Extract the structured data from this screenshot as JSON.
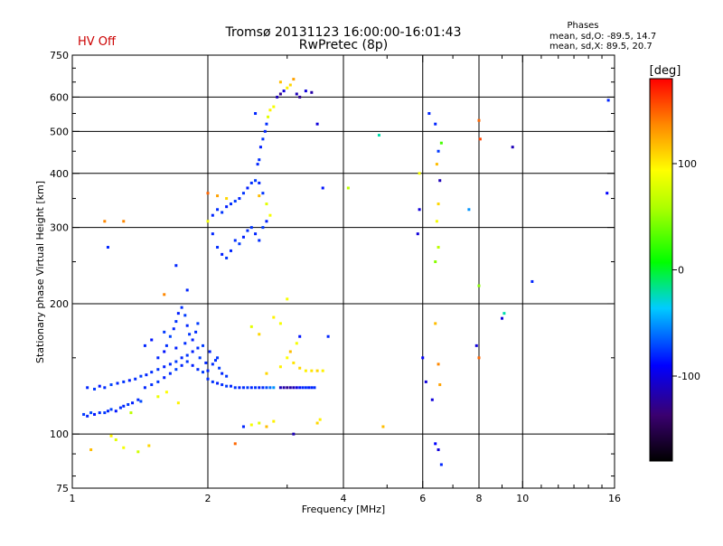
{
  "status": {
    "hv_label": "HV Off",
    "hv_color": "#cc0000"
  },
  "phase_info": {
    "heading": "Phases",
    "line_o": "mean, sd,O: -89.5, 14.7",
    "line_x": "mean, sd,X: 89.5, 20.7"
  },
  "colorbar": {
    "label": "[deg]",
    "ticks": [
      "100",
      "0",
      "-100"
    ],
    "tick_values": [
      100,
      0,
      -100
    ],
    "range": [
      -180,
      180
    ]
  },
  "chart_data": {
    "type": "scatter",
    "title": "Tromsø 20131123 16:00:00-16:01:43",
    "subtitle": "RwPretec (8p)",
    "xlabel": "Frequency [MHz]",
    "ylabel": "Stationary phase Virtual Height [km]",
    "xscale": "log",
    "yscale": "log",
    "xlim": [
      1,
      16
    ],
    "ylim": [
      75,
      750
    ],
    "x_ticks": [
      1,
      2,
      4,
      6,
      8,
      10,
      16
    ],
    "x_tick_labels": [
      "1",
      "2",
      "4",
      "6",
      "8",
      "10",
      "16"
    ],
    "y_ticks": [
      75,
      100,
      200,
      300,
      400,
      500,
      600,
      750
    ],
    "y_tick_labels": [
      "75",
      "100",
      "200",
      "300",
      "400",
      "500",
      "600",
      "750"
    ],
    "grid": true,
    "x_major_gridlines": [
      2,
      4,
      6,
      8,
      10,
      16
    ],
    "y_major_gridlines": [
      100,
      200,
      300,
      400,
      500,
      600
    ],
    "color_scale": "phase [deg]",
    "points": [
      [
        1.06,
        111,
        -85
      ],
      [
        1.08,
        110,
        -90
      ],
      [
        1.1,
        112,
        -80
      ],
      [
        1.12,
        111,
        -95
      ],
      [
        1.15,
        112,
        -88
      ],
      [
        1.18,
        112,
        -85
      ],
      [
        1.2,
        113,
        -90
      ],
      [
        1.22,
        114,
        -82
      ],
      [
        1.25,
        113,
        -95
      ],
      [
        1.28,
        115,
        -88
      ],
      [
        1.3,
        116,
        -90
      ],
      [
        1.33,
        117,
        -85
      ],
      [
        1.36,
        118,
        -92
      ],
      [
        1.4,
        120,
        -88
      ],
      [
        1.42,
        119,
        -80
      ],
      [
        1.08,
        128,
        -90
      ],
      [
        1.12,
        127,
        -85
      ],
      [
        1.15,
        129,
        -95
      ],
      [
        1.18,
        128,
        -88
      ],
      [
        1.22,
        130,
        -82
      ],
      [
        1.26,
        131,
        -90
      ],
      [
        1.3,
        132,
        -86
      ],
      [
        1.34,
        133,
        -92
      ],
      [
        1.38,
        134,
        -88
      ],
      [
        1.42,
        136,
        -84
      ],
      [
        1.46,
        137,
        -90
      ],
      [
        1.5,
        139,
        -88
      ],
      [
        1.55,
        141,
        -86
      ],
      [
        1.6,
        143,
        -92
      ],
      [
        1.65,
        145,
        -88
      ],
      [
        1.7,
        147,
        -84
      ],
      [
        1.75,
        150,
        -90
      ],
      [
        1.8,
        152,
        -86
      ],
      [
        1.85,
        155,
        -92
      ],
      [
        1.9,
        158,
        -88
      ],
      [
        1.95,
        160,
        -84
      ],
      [
        1.45,
        128,
        -90
      ],
      [
        1.5,
        130,
        -88
      ],
      [
        1.55,
        132,
        -85
      ],
      [
        1.6,
        135,
        -92
      ],
      [
        1.65,
        138,
        -88
      ],
      [
        1.7,
        141,
        -82
      ],
      [
        1.75,
        144,
        -90
      ],
      [
        1.8,
        147,
        -86
      ],
      [
        1.85,
        144,
        -92
      ],
      [
        1.9,
        141,
        -88
      ],
      [
        1.95,
        139,
        -84
      ],
      [
        1.55,
        150,
        -90
      ],
      [
        1.6,
        155,
        -95
      ],
      [
        1.62,
        160,
        -88
      ],
      [
        1.65,
        168,
        -82
      ],
      [
        1.68,
        175,
        -90
      ],
      [
        1.7,
        182,
        -86
      ],
      [
        1.72,
        190,
        -92
      ],
      [
        1.75,
        196,
        -88
      ],
      [
        1.78,
        188,
        -84
      ],
      [
        1.8,
        178,
        -90
      ],
      [
        1.82,
        170,
        -86
      ],
      [
        1.85,
        165,
        -92
      ],
      [
        1.88,
        172,
        -88
      ],
      [
        1.9,
        180,
        -84
      ],
      [
        1.5,
        165,
        -95
      ],
      [
        1.45,
        160,
        -90
      ],
      [
        1.6,
        172,
        -85
      ],
      [
        1.7,
        158,
        -92
      ],
      [
        1.78,
        162,
        -88
      ],
      [
        1.92,
        150,
        -84
      ],
      [
        1.98,
        146,
        -90
      ],
      [
        2.0,
        134,
        -88
      ],
      [
        2.05,
        132,
        -86
      ],
      [
        2.1,
        131,
        -92
      ],
      [
        2.15,
        130,
        -88
      ],
      [
        2.2,
        129,
        -84
      ],
      [
        2.25,
        129,
        -90
      ],
      [
        2.3,
        128,
        -86
      ],
      [
        2.35,
        128,
        -92
      ],
      [
        2.4,
        128,
        -88
      ],
      [
        2.45,
        128,
        -84
      ],
      [
        2.5,
        128,
        -90
      ],
      [
        2.55,
        128,
        -86
      ],
      [
        2.6,
        128,
        -92
      ],
      [
        2.65,
        128,
        -88
      ],
      [
        2.7,
        128,
        -80
      ],
      [
        2.75,
        128,
        -70
      ],
      [
        2.8,
        128,
        -60
      ],
      [
        2.9,
        128,
        -120
      ],
      [
        2.95,
        128,
        -125
      ],
      [
        3.0,
        128,
        -130
      ],
      [
        3.05,
        128,
        -125
      ],
      [
        3.1,
        128,
        -120
      ],
      [
        3.15,
        128,
        -110
      ],
      [
        3.2,
        128,
        -95
      ],
      [
        3.25,
        128,
        -90
      ],
      [
        3.3,
        128,
        -88
      ],
      [
        3.35,
        128,
        -92
      ],
      [
        3.4,
        128,
        -90
      ],
      [
        3.45,
        128,
        -88
      ],
      [
        2.0,
        140,
        -90
      ],
      [
        2.05,
        145,
        -88
      ],
      [
        2.1,
        150,
        -86
      ],
      [
        2.02,
        155,
        -92
      ],
      [
        2.08,
        148,
        -88
      ],
      [
        2.12,
        142,
        -84
      ],
      [
        2.15,
        138,
        -90
      ],
      [
        2.2,
        136,
        -86
      ],
      [
        1.35,
        112,
        60
      ],
      [
        1.25,
        97,
        80
      ],
      [
        1.3,
        93,
        90
      ],
      [
        1.22,
        99,
        100
      ],
      [
        1.48,
        94,
        110
      ],
      [
        1.1,
        92,
        120
      ],
      [
        1.4,
        91,
        70
      ],
      [
        1.55,
        122,
        85
      ],
      [
        1.62,
        125,
        95
      ],
      [
        1.72,
        118,
        100
      ],
      [
        2.4,
        104,
        -90
      ],
      [
        2.5,
        105,
        90
      ],
      [
        2.6,
        106,
        80
      ],
      [
        2.7,
        104,
        120
      ],
      [
        2.3,
        95,
        150
      ],
      [
        2.8,
        107,
        100
      ],
      [
        3.1,
        100,
        -120
      ],
      [
        3.5,
        106,
        110
      ],
      [
        3.55,
        108,
        100
      ],
      [
        2.7,
        138,
        110
      ],
      [
        2.9,
        143,
        100
      ],
      [
        3.0,
        150,
        95
      ],
      [
        3.1,
        146,
        105
      ],
      [
        3.2,
        142,
        110
      ],
      [
        3.3,
        140,
        100
      ],
      [
        3.4,
        140,
        105
      ],
      [
        3.5,
        140,
        110
      ],
      [
        3.6,
        140,
        100
      ],
      [
        3.05,
        155,
        120
      ],
      [
        3.15,
        162,
        90
      ],
      [
        2.8,
        186,
        100
      ],
      [
        2.9,
        180,
        90
      ],
      [
        2.5,
        177,
        80
      ],
      [
        2.6,
        170,
        110
      ],
      [
        3.7,
        168,
        -90
      ],
      [
        3.2,
        168,
        -95
      ],
      [
        2.0,
        310,
        90
      ],
      [
        2.05,
        290,
        -90
      ],
      [
        2.1,
        270,
        -88
      ],
      [
        2.15,
        260,
        -92
      ],
      [
        2.2,
        255,
        -86
      ],
      [
        2.25,
        265,
        -90
      ],
      [
        2.3,
        280,
        -88
      ],
      [
        2.35,
        275,
        -84
      ],
      [
        2.4,
        285,
        -92
      ],
      [
        2.45,
        295,
        -88
      ],
      [
        2.5,
        300,
        -86
      ],
      [
        2.55,
        290,
        -90
      ],
      [
        2.6,
        280,
        -88
      ],
      [
        2.65,
        300,
        -84
      ],
      [
        2.7,
        310,
        -92
      ],
      [
        2.05,
        320,
        -90
      ],
      [
        2.1,
        330,
        -88
      ],
      [
        2.15,
        325,
        -86
      ],
      [
        2.2,
        335,
        -92
      ],
      [
        2.25,
        340,
        -88
      ],
      [
        2.3,
        345,
        -84
      ],
      [
        2.35,
        350,
        -90
      ],
      [
        2.4,
        360,
        -86
      ],
      [
        2.45,
        370,
        -92
      ],
      [
        2.5,
        380,
        -88
      ],
      [
        2.55,
        385,
        -84
      ],
      [
        2.6,
        380,
        -90
      ],
      [
        2.65,
        360,
        -86
      ],
      [
        2.7,
        340,
        80
      ],
      [
        2.75,
        320,
        90
      ],
      [
        2.58,
        420,
        -90
      ],
      [
        2.6,
        430,
        -88
      ],
      [
        2.62,
        460,
        -92
      ],
      [
        2.65,
        480,
        -86
      ],
      [
        2.68,
        500,
        -90
      ],
      [
        2.7,
        520,
        -88
      ],
      [
        2.72,
        540,
        80
      ],
      [
        2.55,
        550,
        -90
      ],
      [
        2.75,
        560,
        100
      ],
      [
        2.8,
        570,
        90
      ],
      [
        2.85,
        600,
        -120
      ],
      [
        2.9,
        610,
        -130
      ],
      [
        2.95,
        620,
        -110
      ],
      [
        3.0,
        630,
        100
      ],
      [
        3.05,
        640,
        110
      ],
      [
        3.15,
        610,
        -120
      ],
      [
        3.2,
        600,
        -130
      ],
      [
        3.3,
        620,
        -110
      ],
      [
        3.4,
        615,
        -125
      ],
      [
        3.5,
        520,
        -110
      ],
      [
        2.9,
        650,
        120
      ],
      [
        3.1,
        660,
        130
      ],
      [
        3.6,
        370,
        -95
      ],
      [
        4.8,
        490,
        -30
      ],
      [
        1.2,
        270,
        -90
      ],
      [
        1.18,
        310,
        140
      ],
      [
        1.3,
        310,
        140
      ],
      [
        1.7,
        245,
        -90
      ],
      [
        1.8,
        215,
        -90
      ],
      [
        1.6,
        210,
        140
      ],
      [
        2.0,
        360,
        150
      ],
      [
        2.1,
        355,
        130
      ],
      [
        2.2,
        350,
        110
      ],
      [
        2.6,
        355,
        120
      ],
      [
        3.0,
        205,
        90
      ],
      [
        5.9,
        330,
        -110
      ],
      [
        5.85,
        290,
        -110
      ],
      [
        6.0,
        150,
        -100
      ],
      [
        6.1,
        132,
        -110
      ],
      [
        6.3,
        120,
        -110
      ],
      [
        6.4,
        95,
        -100
      ],
      [
        6.5,
        92,
        -110
      ],
      [
        6.6,
        85,
        -90
      ],
      [
        6.4,
        180,
        120
      ],
      [
        6.5,
        145,
        140
      ],
      [
        6.55,
        130,
        130
      ],
      [
        6.4,
        250,
        40
      ],
      [
        6.5,
        270,
        60
      ],
      [
        6.45,
        310,
        90
      ],
      [
        6.5,
        340,
        110
      ],
      [
        6.2,
        550,
        -90
      ],
      [
        6.4,
        520,
        -90
      ],
      [
        6.5,
        450,
        -85
      ],
      [
        6.55,
        385,
        -120
      ],
      [
        6.6,
        470,
        20
      ],
      [
        6.45,
        420,
        120
      ],
      [
        7.6,
        330,
        -60
      ],
      [
        8.0,
        530,
        150
      ],
      [
        8.05,
        480,
        160
      ],
      [
        8.0,
        220,
        40
      ],
      [
        7.9,
        160,
        -110
      ],
      [
        8.0,
        150,
        150
      ],
      [
        9.0,
        185,
        -110
      ],
      [
        9.1,
        190,
        -30
      ],
      [
        9.5,
        460,
        -120
      ],
      [
        10.5,
        225,
        -90
      ],
      [
        15.5,
        590,
        -90
      ],
      [
        15.4,
        360,
        -100
      ],
      [
        5.9,
        400,
        90
      ],
      [
        4.1,
        370,
        60
      ],
      [
        4.9,
        104,
        120
      ]
    ]
  }
}
